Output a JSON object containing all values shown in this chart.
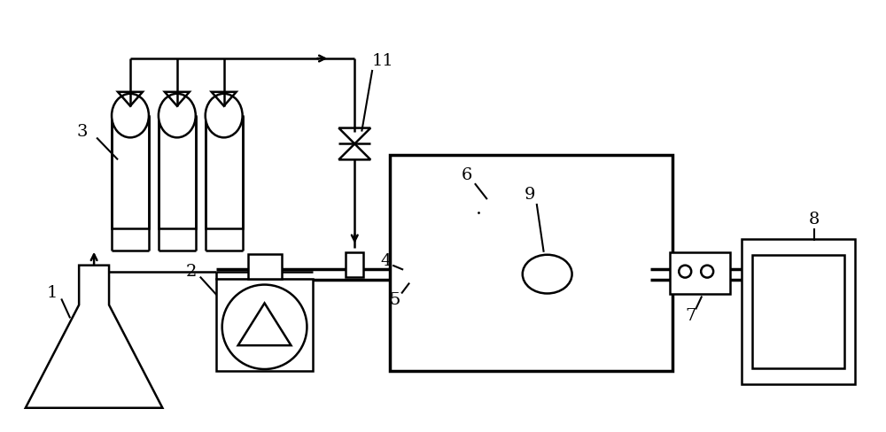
{
  "fig_width": 10.0,
  "fig_height": 4.88,
  "dpi": 100,
  "bg_color": "#ffffff",
  "line_color": "#000000",
  "lw": 1.8,
  "lw_thick": 2.5
}
